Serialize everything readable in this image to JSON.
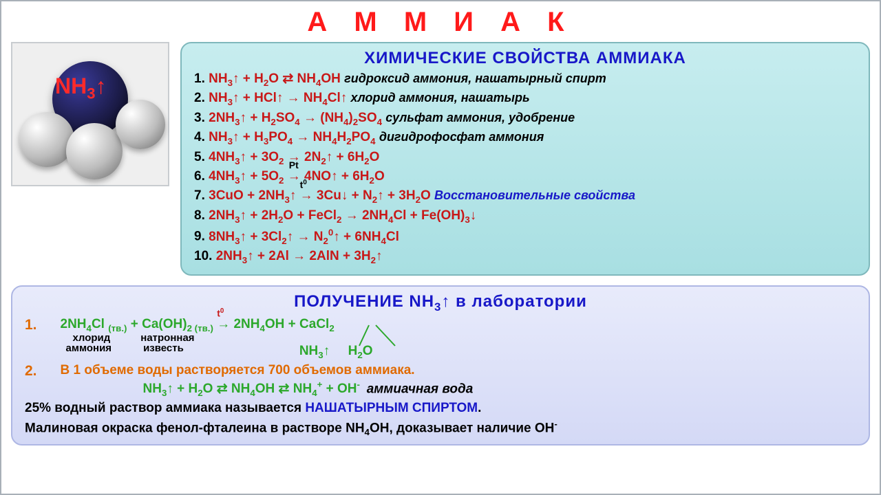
{
  "colors": {
    "title_red": "#ff1a1a",
    "header_blue": "#1818c8",
    "reaction_red": "#c81818",
    "black": "#000000",
    "italic_orange": "#e06a00",
    "green": "#2ca82c",
    "panel1_bg": "#b8e6e9",
    "panel1_border": "#7fb8bc",
    "panel2_bg": "#dde1f8",
    "panel2_border": "#aeb7e4",
    "molbox_bg": "#efefef"
  },
  "fonts": {
    "title_pt": 40,
    "header_pt": 24,
    "line_pt": 19,
    "sublabel_pt": 15
  },
  "title": "А М М И А К",
  "molecule_label_html": "NH<sub>3</sub>↑",
  "panel1": {
    "header": "ХИМИЧЕСКИЕ СВОЙСТВА АММИАКА",
    "reactions": [
      {
        "n": "1.",
        "rx": "NH<sub>3</sub>↑ + H<sub>2</sub>O ⇄ NH<sub>4</sub>OH",
        "note": "гидроксид аммония, нашатырный спирт",
        "note_color": "#000000",
        "note_italic": true
      },
      {
        "n": "2.",
        "rx": "NH<sub>3</sub>↑ + HCl↑ → NH<sub>4</sub>Cl↑",
        "note": "хлорид аммония, нашатырь",
        "note_color": "#000000",
        "note_italic": true
      },
      {
        "n": "3.",
        "rx": "2NH<sub>3</sub>↑ + H<sub>2</sub>SO<sub>4</sub> → (NH<sub>4</sub>)<sub>2</sub>SO<sub>4</sub>",
        "note": "сульфат аммония, удобрение",
        "note_color": "#000000",
        "note_italic": true
      },
      {
        "n": "4.",
        "rx": "NH<sub>3</sub>↑ + H<sub>3</sub>PO<sub>4</sub> → NH<sub>4</sub>H<sub>2</sub>PO<sub>4</sub>",
        "note": "дигидрофосфат аммония",
        "note_color": "#000000",
        "note_italic": true
      },
      {
        "n": "5.",
        "rx": "4NH<sub>3</sub>↑ + 3O<sub>2</sub> → 2N<sub>2</sub>↑ + 6H<sub>2</sub>O",
        "note": "",
        "note_color": "#000000",
        "note_italic": false
      },
      {
        "n": "6.",
        "rx": "4NH<sub>3</sub>↑ + 5O<sub>2</sub> <span style='position:relative;'><span style='position:absolute;top:-14px;left:2px;font-size:14px;color:#000;'>Pt</span>→</span> 4NO↑ + 6H<sub>2</sub>O",
        "note": "",
        "note_color": "#000000",
        "note_italic": false
      },
      {
        "n": "7.",
        "rx": "3CuO + 2NH<sub>3</sub>↑ <span style='position:relative;'><span style='position:absolute;top:-14px;left:0;font-size:14px;color:#000;'>t<sup>0</sup></span>→</span> 3Cu↓ + N<sub>2</sub>↑ + 3H<sub>2</sub>O",
        "note": "Восстановительные свойства",
        "note_color": "#1818c8",
        "note_italic": true
      },
      {
        "n": "8.",
        "rx": "2NH<sub>3</sub>↑ + 2H<sub>2</sub>O + FeCl<sub>2</sub> → 2NH<sub>4</sub>Cl + Fe(OH)<sub>3</sub>↓",
        "note": "",
        "note_color": "#000000",
        "note_italic": false
      },
      {
        "n": "9.",
        "rx": "8NH<sub>3</sub>↑ + 3Cl<sub>2</sub>↑ → N<sub>2</sub><sup>0</sup>↑ + 6NH<sub>4</sub>Cl",
        "note": "",
        "note_color": "#000000",
        "note_italic": false
      },
      {
        "n": "10.",
        "rx": "2NH<sub>3</sub>↑ + 2Al → 2AlN + 3H<sub>2</sub>↑",
        "note": "",
        "note_color": "#000000",
        "note_italic": false
      }
    ]
  },
  "panel2": {
    "header_html": "ПОЛУЧЕНИЕ  NH<sub>3</sub>↑  в лаборатории",
    "item1": {
      "index": "1.",
      "equation_html": "2NH<sub>4</sub>Cl <sub>(тв.)</sub> + Ca(OH)<sub>2 (тв.)</sub> <span style='position:relative;'><span style='position:absolute;top:-14px;left:0;font-size:14px;color:#c81818;'>t<sup>0</sup></span>→</span> 2NH<sub>4</sub>OH + CaCl<sub>2</sub>",
      "sublabels": [
        "хлорид",
        "натронная"
      ],
      "sublabels2": [
        "аммония",
        "известь"
      ],
      "decomp_left": "NH<sub>3</sub>↑",
      "decomp_right": "H<sub>2</sub>O"
    },
    "item2": {
      "index": "2.",
      "text": "В 1 объеме воды растворяется 700 объемов аммиака.",
      "equation_html": "NH<sub>3</sub>↑ + H<sub>2</sub>O ⇄ NH<sub>4</sub>OH ⇄ NH<sub>4</sub><sup>+</sup> + OH<sup>-</sup>",
      "tail": "аммиачная вода"
    },
    "footer1_html": "25% водный раствор аммиака называется <span style='color:#1818c8;'>НАШАТЫРНЫМ СПИРТОМ</span>.",
    "footer2_html": "Малиновая окраска фенол-фталеина в растворе NH<sub>4</sub>OH, доказывает наличие OH<sup>-</sup>"
  }
}
